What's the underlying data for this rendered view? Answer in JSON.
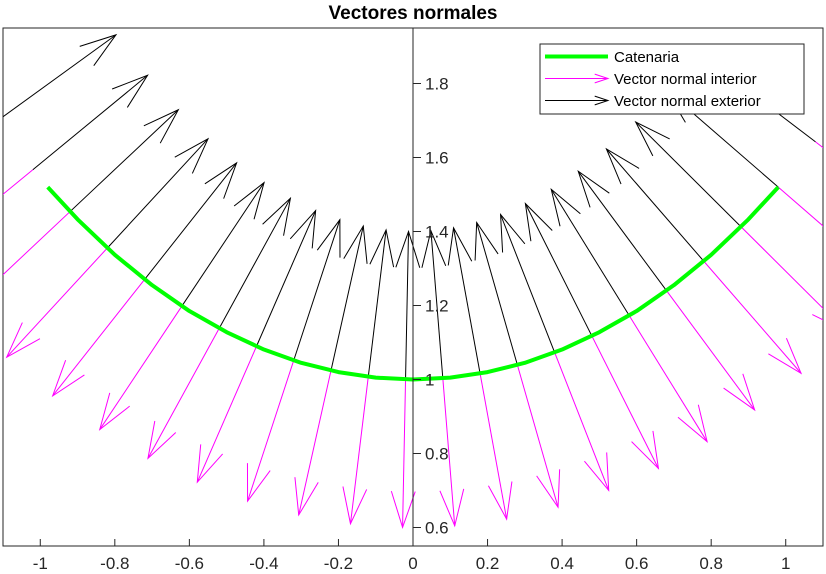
{
  "chart_data": {
    "type": "line",
    "title": "Vectores normales",
    "xlabel": "",
    "ylabel": "",
    "xlim": [
      -1.1,
      1.1
    ],
    "ylim": [
      0.55,
      1.95
    ],
    "x_ticks": [
      -1,
      -0.8,
      -0.6,
      -0.4,
      -0.2,
      0,
      0.2,
      0.4,
      0.6,
      0.8,
      1
    ],
    "x_tick_labels": [
      "-1",
      "-0.8",
      "-0.6",
      "-0.4",
      "-0.2",
      "0",
      "0.2",
      "0.4",
      "0.6",
      "0.8",
      "1"
    ],
    "y_ticks": [
      0.6,
      0.8,
      1,
      1.2,
      1.4,
      1.6,
      1.8
    ],
    "y_tick_labels": [
      "0.6",
      "0.8",
      "1",
      "1.2",
      "1.4",
      "1.6",
      "1.8"
    ],
    "y_axis_location": "origin",
    "grid": false,
    "legend_position": "top-right",
    "series": [
      {
        "name": "Catenaria",
        "kind": "curve",
        "function": "y = cosh(x)",
        "color": "#00ff00",
        "x": [
          -0.98,
          -0.9,
          -0.8,
          -0.7,
          -0.6,
          -0.5,
          -0.4,
          -0.3,
          -0.2,
          -0.1,
          0,
          0.1,
          0.2,
          0.3,
          0.4,
          0.5,
          0.6,
          0.7,
          0.8,
          0.9,
          0.98
        ],
        "y": [
          1.52,
          1.433,
          1.337,
          1.255,
          1.185,
          1.128,
          1.081,
          1.045,
          1.02,
          1.005,
          1,
          1.005,
          1.02,
          1.045,
          1.081,
          1.128,
          1.185,
          1.255,
          1.337,
          1.433,
          1.52
        ]
      },
      {
        "name": "Vector normal interior",
        "kind": "vectors",
        "direction": "interior",
        "color": "#ff00ff",
        "length": 0.4,
        "base_x": [
          -1.12,
          -1.02,
          -0.92,
          -0.82,
          -0.72,
          -0.62,
          -0.52,
          -0.42,
          -0.32,
          -0.22,
          -0.12,
          -0.02,
          0.08,
          0.18,
          0.28,
          0.38,
          0.48,
          0.58,
          0.68,
          0.78,
          0.88,
          0.98,
          1.08
        ]
      },
      {
        "name": "Vector normal exterior",
        "kind": "vectors",
        "direction": "exterior",
        "color": "#000000",
        "length": 0.4,
        "base_x": [
          -1.12,
          -1.02,
          -0.92,
          -0.82,
          -0.72,
          -0.62,
          -0.52,
          -0.42,
          -0.32,
          -0.22,
          -0.12,
          -0.02,
          0.08,
          0.18,
          0.28,
          0.38,
          0.48,
          0.58,
          0.68,
          0.78,
          0.88,
          0.98,
          1.08
        ]
      }
    ],
    "colors": {
      "axes": "#262626",
      "curve": "#00ff00",
      "interior": "#ff00ff",
      "exterior": "#000000"
    }
  }
}
